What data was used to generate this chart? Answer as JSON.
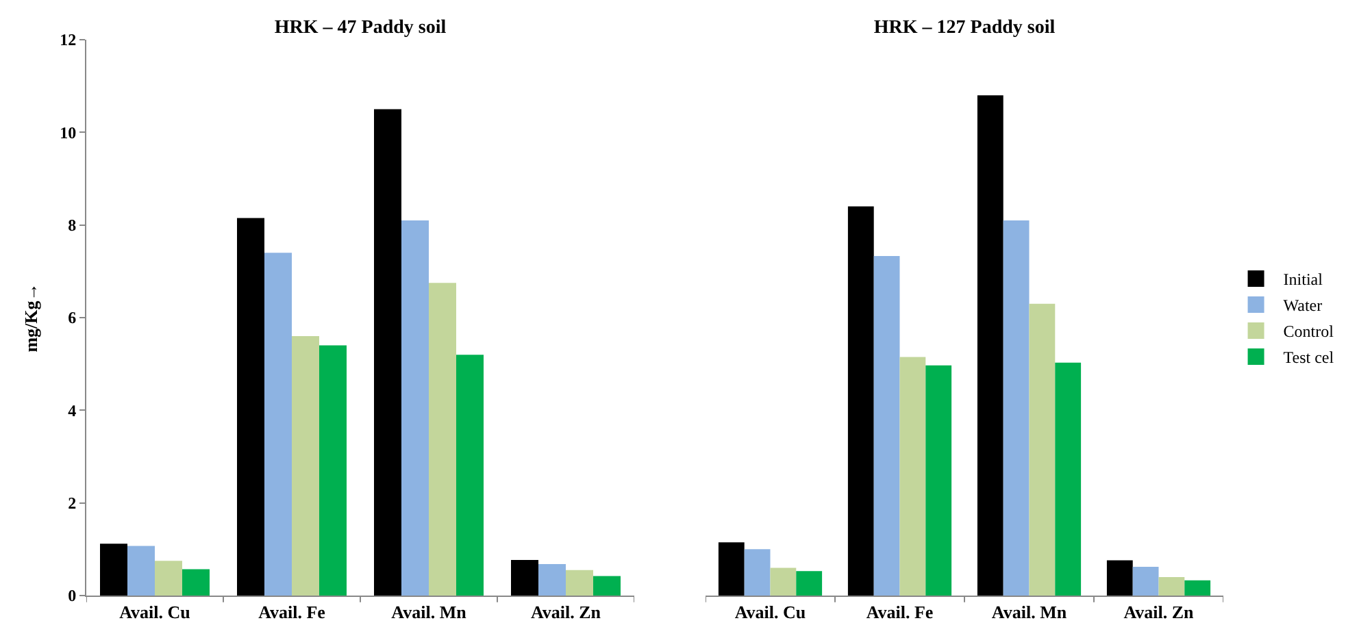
{
  "chart_data": [
    {
      "type": "bar",
      "title": "HRK – 47 Paddy soil",
      "ylabel": "mg/Kg→",
      "categories": [
        "Avail. Cu",
        "Avail. Fe",
        "Avail. Mn",
        "Avail. Zn"
      ],
      "series": [
        {
          "color": "#000000",
          "values": [
            1.12,
            8.15,
            10.5,
            0.77
          ]
        },
        {
          "color": "#8db3e2",
          "values": [
            1.07,
            7.4,
            8.1,
            0.68
          ]
        },
        {
          "color": "#c3d69b",
          "values": [
            0.75,
            5.6,
            6.75,
            0.55
          ]
        },
        {
          "color": "#00b050",
          "values": [
            0.57,
            5.4,
            5.2,
            0.42
          ]
        }
      ],
      "ylim": [
        0,
        12
      ],
      "yticks": [
        0,
        2,
        4,
        6,
        8,
        10,
        12
      ],
      "grid": false,
      "legend": false
    },
    {
      "type": "bar",
      "title": "HRK – 127 Paddy soil",
      "categories": [
        "Avail. Cu",
        "Avail. Fe",
        "Avail. Mn",
        "Avail. Zn"
      ],
      "series": [
        {
          "name": "Initial",
          "color": "#000000",
          "values": [
            1.15,
            8.4,
            10.8,
            0.76
          ]
        },
        {
          "name": "Water",
          "color": "#8db3e2",
          "values": [
            1.0,
            7.33,
            8.1,
            0.62
          ]
        },
        {
          "name": "Control",
          "color": "#c3d69b",
          "values": [
            0.6,
            5.15,
            6.3,
            0.4
          ]
        },
        {
          "name": "Test cel",
          "color": "#00b050",
          "values": [
            0.53,
            4.97,
            5.03,
            0.33
          ]
        }
      ],
      "ylim": [
        0,
        12
      ],
      "tick_labels": "x",
      "grid": false,
      "legend": "right"
    }
  ]
}
